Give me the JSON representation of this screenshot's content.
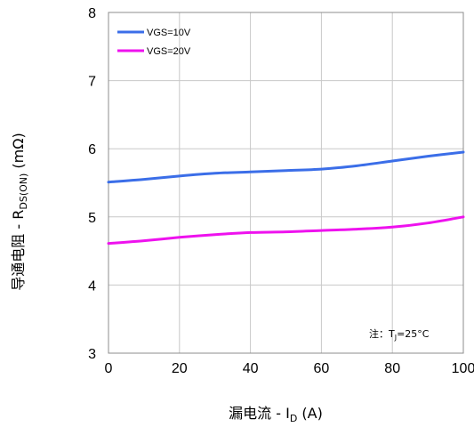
{
  "chart_data": {
    "type": "line",
    "xlabel_main": "漏电流 - I",
    "xlabel_sub": "D",
    "xlabel_unit": " (A)",
    "ylabel_main": "导通电阻 - R",
    "ylabel_sub": "DS(ON)",
    "ylabel_unit": " (mΩ)",
    "xlim": [
      0,
      100
    ],
    "ylim": [
      3,
      8
    ],
    "xticks": [
      0,
      20,
      40,
      60,
      80,
      100
    ],
    "yticks": [
      3,
      4,
      5,
      6,
      7,
      8
    ],
    "grid": true,
    "legend_position": "top-left",
    "note": {
      "prefix": "注：T",
      "sub": "J",
      "suffix": "=25°C"
    },
    "series": [
      {
        "name": "VGS=10V",
        "color": "#3b6ee8",
        "x": [
          0,
          10,
          20,
          30,
          40,
          50,
          60,
          70,
          80,
          90,
          100
        ],
        "y": [
          5.51,
          5.55,
          5.6,
          5.64,
          5.66,
          5.68,
          5.7,
          5.75,
          5.82,
          5.89,
          5.95
        ]
      },
      {
        "name": "VGS=20V",
        "color": "#ee12ee",
        "x": [
          0,
          10,
          20,
          30,
          40,
          50,
          60,
          70,
          80,
          90,
          100
        ],
        "y": [
          4.61,
          4.65,
          4.7,
          4.74,
          4.77,
          4.78,
          4.8,
          4.82,
          4.85,
          4.91,
          5.0
        ]
      }
    ]
  }
}
